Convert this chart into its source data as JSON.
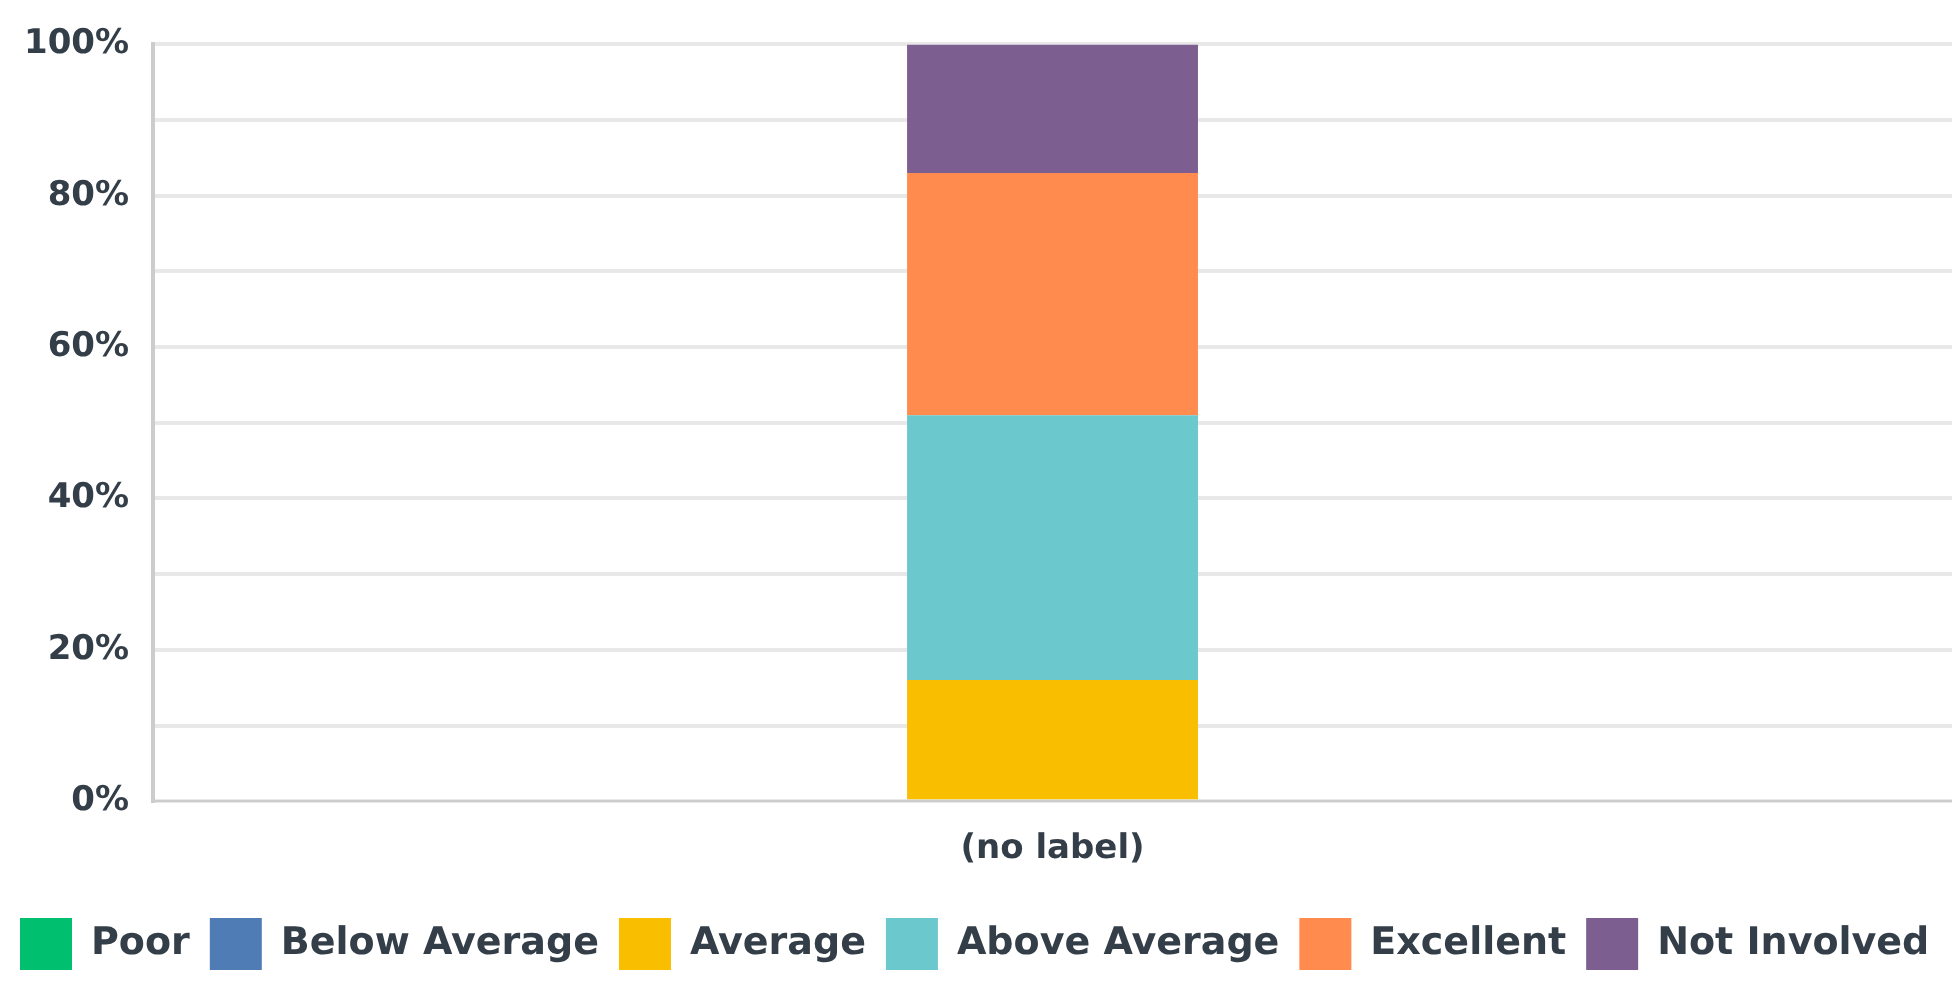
{
  "chart_data": {
    "type": "bar",
    "stacked": true,
    "categories": [
      "(no label)"
    ],
    "series": [
      {
        "name": "Poor",
        "color": "#00bf6f",
        "values": [
          0
        ]
      },
      {
        "name": "Below Average",
        "color": "#507cb6",
        "values": [
          0
        ]
      },
      {
        "name": "Average",
        "color": "#f9be00",
        "values": [
          16
        ]
      },
      {
        "name": "Above Average",
        "color": "#6bc8cd",
        "values": [
          35
        ]
      },
      {
        "name": "Excellent",
        "color": "#ff8b4f",
        "values": [
          32
        ]
      },
      {
        "name": "Not Involved",
        "color": "#7d5e90",
        "values": [
          17
        ]
      }
    ],
    "ylim": [
      0,
      100
    ],
    "yticks": [
      {
        "value": 0,
        "label": "0%"
      },
      {
        "value": 10,
        "label": null
      },
      {
        "value": 20,
        "label": "20%"
      },
      {
        "value": 30,
        "label": null
      },
      {
        "value": 40,
        "label": "40%"
      },
      {
        "value": 50,
        "label": null
      },
      {
        "value": 60,
        "label": "60%"
      },
      {
        "value": 70,
        "label": null
      },
      {
        "value": 80,
        "label": "80%"
      },
      {
        "value": 90,
        "label": null
      },
      {
        "value": 100,
        "label": "100%"
      }
    ],
    "grid": "y",
    "legend": "bottom"
  }
}
